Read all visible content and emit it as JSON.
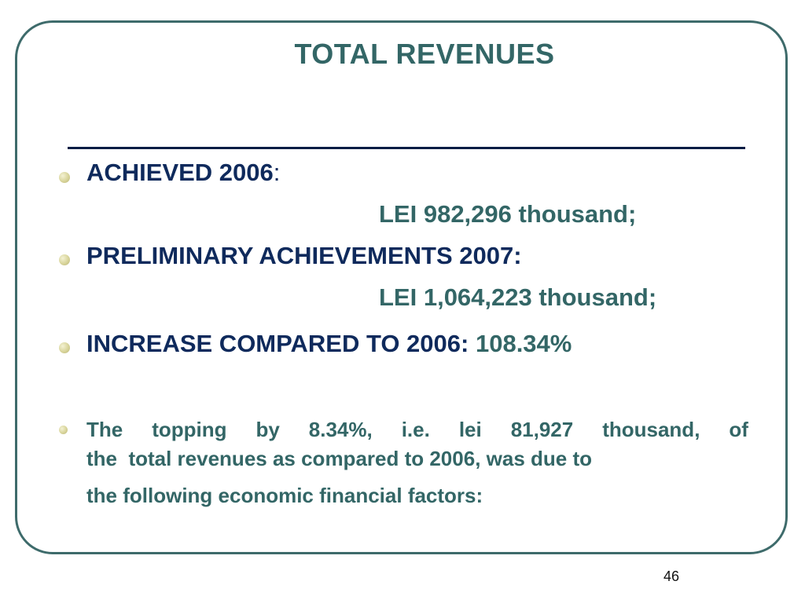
{
  "slide": {
    "title": "TOTAL REVENUES",
    "page_number": "46",
    "colors": {
      "title": "#336666",
      "heading": "#0f2a5c",
      "value": "#336666",
      "frame": "#3e6b6b",
      "rule": "#0b1d44"
    }
  },
  "bullets": [
    {
      "label": "ACHIEVED 2006",
      "suffix": ":",
      "value": "LEI 982,296 thousand;"
    },
    {
      "label": "PRELIMINARY ACHIEVEMENTS 2007:",
      "value": "LEI 1,064,223 thousand;"
    },
    {
      "label": "INCREASE COMPARED TO 2006:",
      "value": "108.34%"
    }
  ],
  "note": {
    "line1_words": [
      "The",
      "topping",
      "by",
      "8.34%,",
      "i.e.",
      "lei",
      "81,927",
      "thousand,",
      "of"
    ],
    "line2": "the  total revenues as compared to 2006, was due to",
    "line3": "the following economic financial factors:"
  }
}
